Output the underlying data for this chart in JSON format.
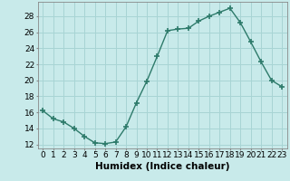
{
  "x": [
    0,
    1,
    2,
    3,
    4,
    5,
    6,
    7,
    8,
    9,
    10,
    11,
    12,
    13,
    14,
    15,
    16,
    17,
    18,
    19,
    20,
    21,
    22,
    23
  ],
  "y": [
    16.2,
    15.2,
    14.8,
    14.0,
    13.0,
    12.2,
    12.1,
    12.3,
    14.2,
    17.2,
    19.9,
    23.0,
    26.2,
    26.4,
    26.5,
    27.4,
    28.0,
    28.5,
    29.0,
    27.2,
    24.8,
    22.3,
    20.0,
    19.2
  ],
  "line_color": "#2d7a6a",
  "marker": "+",
  "marker_size": 4,
  "bg_color": "#c8eaea",
  "grid_color": "#a8d4d4",
  "xlabel": "Humidex (Indice chaleur)",
  "xlim": [
    -0.5,
    23.5
  ],
  "ylim": [
    11.5,
    29.8
  ],
  "yticks": [
    12,
    14,
    16,
    18,
    20,
    22,
    24,
    26,
    28
  ],
  "xticks": [
    0,
    1,
    2,
    3,
    4,
    5,
    6,
    7,
    8,
    9,
    10,
    11,
    12,
    13,
    14,
    15,
    16,
    17,
    18,
    19,
    20,
    21,
    22,
    23
  ],
  "label_fontsize": 7.5,
  "tick_fontsize": 6.5
}
